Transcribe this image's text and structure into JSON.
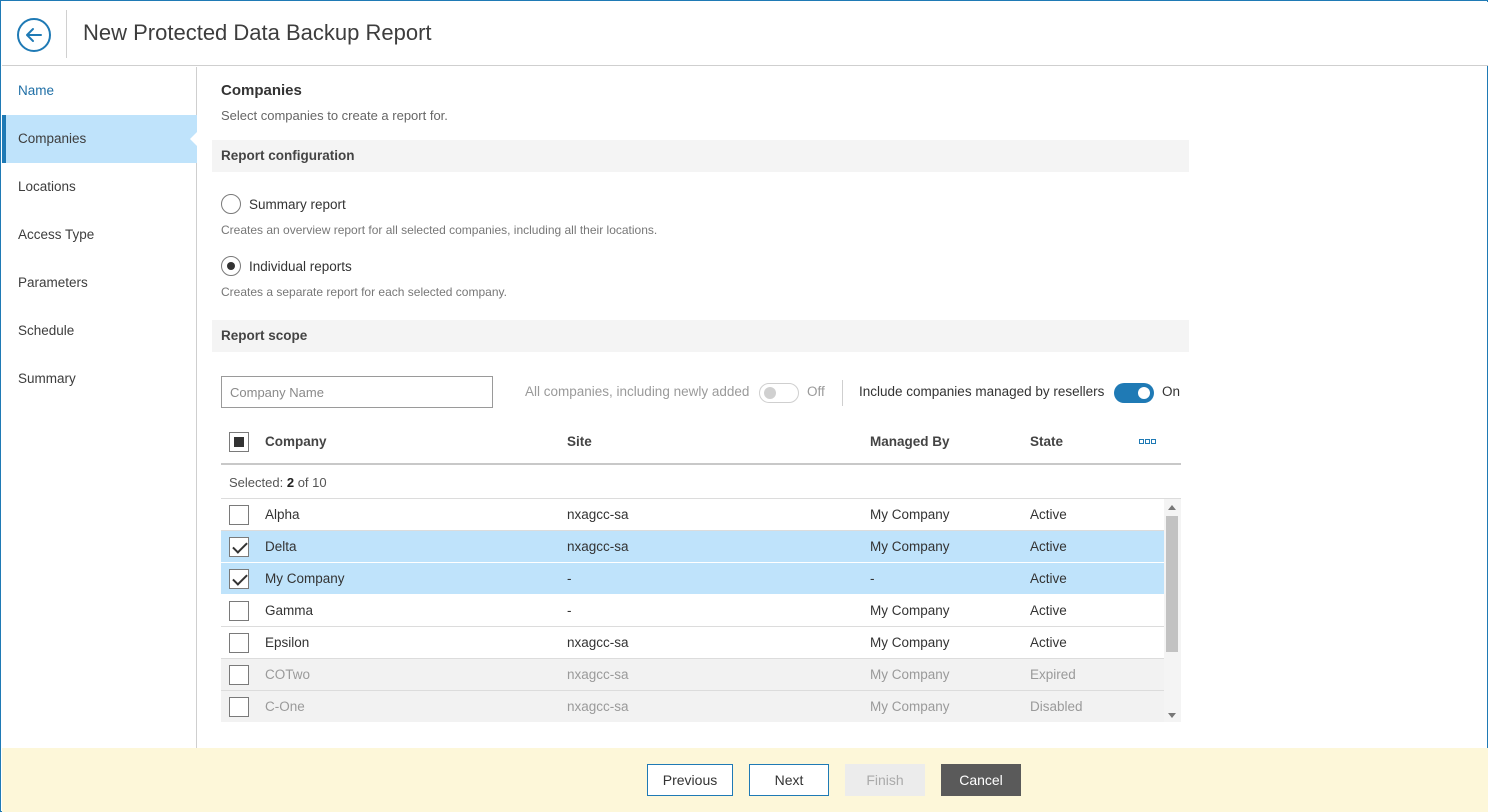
{
  "header": {
    "title": "New Protected Data Backup Report",
    "back_icon": "arrow-left-icon"
  },
  "sidebar": {
    "items": [
      {
        "label": "Name",
        "state": "link"
      },
      {
        "label": "Companies",
        "state": "active"
      },
      {
        "label": "Locations",
        "state": "normal"
      },
      {
        "label": "Access Type",
        "state": "normal"
      },
      {
        "label": "Parameters",
        "state": "normal"
      },
      {
        "label": "Schedule",
        "state": "normal"
      },
      {
        "label": "Summary",
        "state": "normal"
      }
    ]
  },
  "main": {
    "title": "Companies",
    "subtitle": "Select companies to create a report for.",
    "report_config": {
      "heading": "Report configuration",
      "options": [
        {
          "label": "Summary report",
          "description": "Creates an overview report for all selected companies, including all their locations.",
          "selected": false
        },
        {
          "label": "Individual reports",
          "description": "Creates a separate report for each selected company.",
          "selected": true
        }
      ]
    },
    "report_scope": {
      "heading": "Report scope",
      "search_placeholder": "Company Name",
      "all_companies_label": "All companies, including newly added",
      "all_companies_state": "Off",
      "resellers_label": "Include companies managed by resellers",
      "resellers_state": "On"
    },
    "table": {
      "headers": {
        "company": "Company",
        "site": "Site",
        "managed_by": "Managed By",
        "state": "State"
      },
      "selected_prefix": "Selected:",
      "selected_count": "2",
      "selected_total": "of 10",
      "rows": [
        {
          "company": "Alpha",
          "site": "nxagcc-sa",
          "managed_by": "My Company",
          "state": "Active",
          "checked": false,
          "dim": false
        },
        {
          "company": "Delta",
          "site": "nxagcc-sa",
          "managed_by": "My Company",
          "state": "Active",
          "checked": true,
          "dim": false
        },
        {
          "company": "My Company",
          "site": "-",
          "managed_by": "-",
          "state": "Active",
          "checked": true,
          "dim": false
        },
        {
          "company": "Gamma",
          "site": "-",
          "managed_by": "My Company",
          "state": "Active",
          "checked": false,
          "dim": false
        },
        {
          "company": "Epsilon",
          "site": "nxagcc-sa",
          "managed_by": "My Company",
          "state": "Active",
          "checked": false,
          "dim": false
        },
        {
          "company": "COTwo",
          "site": "nxagcc-sa",
          "managed_by": "My Company",
          "state": "Expired",
          "checked": false,
          "dim": true
        },
        {
          "company": "C-One",
          "site": "nxagcc-sa",
          "managed_by": "My Company",
          "state": "Disabled",
          "checked": false,
          "dim": true
        }
      ]
    }
  },
  "footer": {
    "previous": "Previous",
    "next": "Next",
    "finish": "Finish",
    "cancel": "Cancel"
  },
  "colors": {
    "accent": "#1f7ab5",
    "selected_row": "#bfe3fb",
    "footer_bg": "#fdf7d9",
    "cancel_bg": "#5a5a5a"
  }
}
